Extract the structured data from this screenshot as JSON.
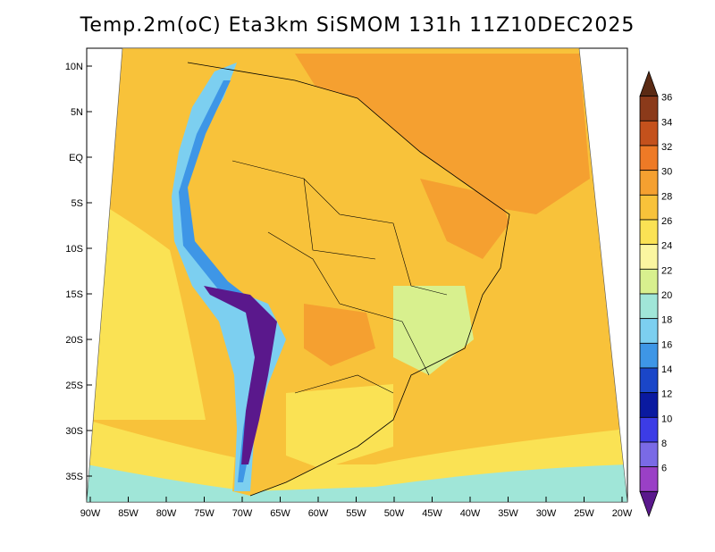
{
  "title": "Temp.2m(oC) Eta3km SiSMOM 131h 11Z10DEC2025",
  "map": {
    "lat_labels": [
      "10N",
      "5N",
      "EQ",
      "5S",
      "10S",
      "15S",
      "20S",
      "25S",
      "30S",
      "35S"
    ],
    "lon_labels": [
      "90W",
      "85W",
      "80W",
      "75W",
      "70W",
      "65W",
      "60W",
      "55W",
      "50W",
      "45W",
      "40W",
      "35W",
      "30W",
      "25W",
      "20W"
    ]
  },
  "colorbar": {
    "labels": [
      "36",
      "34",
      "32",
      "30",
      "28",
      "26",
      "24",
      "22",
      "20",
      "18",
      "16",
      "14",
      "12",
      "10",
      "8",
      "6"
    ],
    "colors": [
      "#5a2a14",
      "#8b3a1a",
      "#c4511c",
      "#ee7a26",
      "#f5a030",
      "#f8c23a",
      "#fae254",
      "#fbf6a0",
      "#d8f08e",
      "#a0e6d8",
      "#7ccff0",
      "#3e96e6",
      "#1a46c8",
      "#0a1aa0",
      "#3c3ce6",
      "#7a6ae6",
      "#9a40c6",
      "#5a188c"
    ]
  }
}
